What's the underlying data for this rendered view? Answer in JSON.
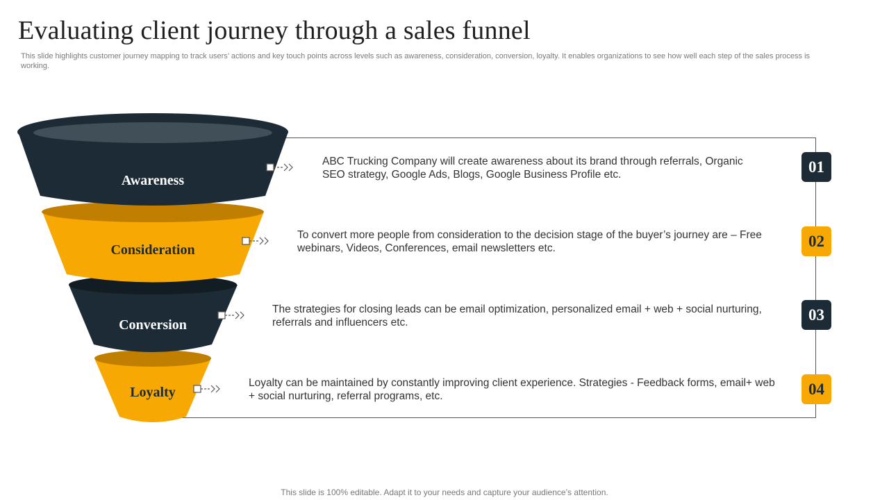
{
  "header": {
    "title": "Evaluating client journey through a sales funnel",
    "subtitle": "This slide highlights customer journey mapping to track users’ actions and key touch points across levels such as awareness, consideration, conversion, loyalty. It enables organizations to see how well each step of the sales process is working."
  },
  "stages": [
    {
      "label": "Awareness",
      "number": "01",
      "description": "ABC Trucking Company will create awareness about its brand through referrals, Organic SEO strategy, Google Ads, Blogs, Google Business Profile etc."
    },
    {
      "label": "Consideration",
      "number": "02",
      "description": "To convert more people from consideration to the decision stage of the buyer’s journey are – Free webinars, Videos, Conferences, email newsletters etc."
    },
    {
      "label": "Conversion",
      "number": "03",
      "description": "The strategies for closing leads can be email optimization, personalized email + web + social nurturing, referrals and influencers etc."
    },
    {
      "label": "Loyalty",
      "number": "04",
      "description": "Loyalty can be maintained by constantly improving client experience. Strategies - Feedback forms, email+ web + social nurturing, referral programs, etc."
    }
  ],
  "footer": {
    "text": "This slide is 100% editable. Adapt it to your needs and capture your audience’s attention."
  },
  "colors": {
    "dark": "#1c2b35",
    "gold": "#f8a803",
    "gold_dark": "#c07f00"
  }
}
